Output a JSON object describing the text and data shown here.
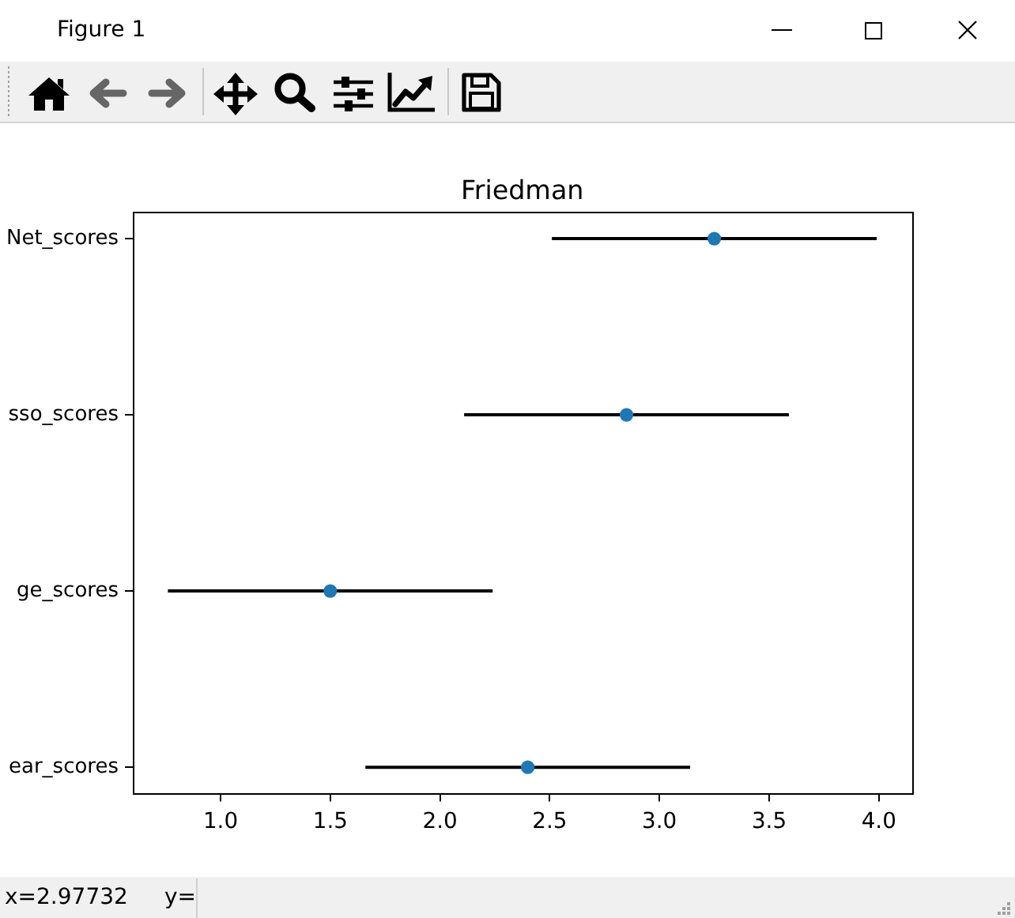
{
  "chart_data": {
    "type": "scatter",
    "title": "Friedman",
    "orientation": "horizontal",
    "categories": [
      "Net_scores",
      "sso_scores",
      "ge_scores",
      "ear_scores"
    ],
    "values": [
      3.25,
      2.85,
      1.5,
      2.4
    ],
    "errors": [
      0.74,
      0.74,
      0.74,
      0.74
    ],
    "color": "#1f77b4",
    "marker": "circle",
    "xlim": [
      0.6,
      4.15
    ],
    "xticks": [
      {
        "value": 1,
        "label": "1.0"
      },
      1.5,
      {
        "value": 2,
        "label": "2.0"
      },
      2.5,
      {
        "value": 3,
        "label": "3.0"
      },
      3.5,
      {
        "value": 4,
        "label": "4.0"
      }
    ],
    "grid": false,
    "legend": false,
    "annotations": [
      "Figure 1",
      "x=2.97732",
      "y="
    ]
  }
}
